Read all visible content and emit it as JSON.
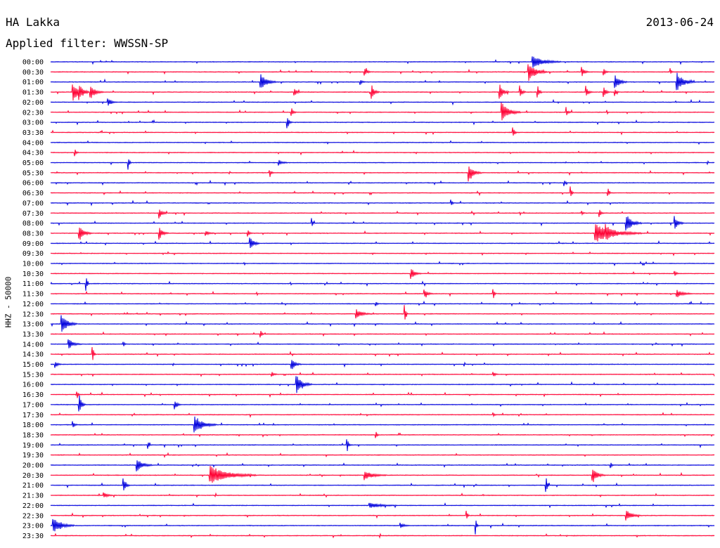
{
  "header": {
    "station": "HA Lakka",
    "date": "2013-06-24",
    "filter_label": "Applied filter: WWSSN-SP"
  },
  "axis": {
    "ylabel": "HHZ - 50000"
  },
  "colors": {
    "blue": "#0000dd",
    "red": "#ff0033",
    "text": "#000000"
  },
  "chart_data": {
    "type": "line",
    "title": "HA Lakka",
    "subtitle": "Applied filter: WWSSN-SP",
    "date": "2013-06-24",
    "ylabel": "HHZ - 50000",
    "rows": [
      "00:00",
      "00:30",
      "01:00",
      "01:30",
      "02:00",
      "02:30",
      "03:00",
      "03:30",
      "04:00",
      "04:30",
      "05:00",
      "05:30",
      "06:00",
      "06:30",
      "07:00",
      "07:30",
      "08:00",
      "08:30",
      "09:00",
      "09:30",
      "10:00",
      "10:30",
      "11:00",
      "11:30",
      "12:00",
      "12:30",
      "13:00",
      "13:30",
      "14:00",
      "14:30",
      "15:00",
      "15:30",
      "16:00",
      "16:30",
      "17:00",
      "17:30",
      "18:00",
      "18:30",
      "19:00",
      "19:30",
      "20:00",
      "20:30",
      "21:00",
      "21:30",
      "22:00",
      "22:30",
      "23:00",
      "23:30"
    ],
    "row_colors": [
      "blue",
      "red"
    ],
    "minutes_per_row": 30,
    "events": [
      [
        0,
        21.8,
        18,
        0.6
      ],
      [
        1,
        14.2,
        4,
        0.4
      ],
      [
        1,
        21.6,
        12,
        1.0
      ],
      [
        1,
        24.0,
        5,
        0.5
      ],
      [
        1,
        25.0,
        3,
        0.4
      ],
      [
        1,
        28.0,
        2,
        0.4
      ],
      [
        2,
        9.5,
        10,
        0.8
      ],
      [
        2,
        14.0,
        3,
        0.3
      ],
      [
        2,
        25.5,
        8,
        0.8
      ],
      [
        2,
        28.3,
        12,
        1.0
      ],
      [
        3,
        1.0,
        10,
        1.0
      ],
      [
        3,
        1.3,
        6,
        0.7
      ],
      [
        3,
        1.8,
        8,
        0.8
      ],
      [
        3,
        11.0,
        4,
        0.5
      ],
      [
        3,
        14.5,
        5,
        0.8
      ],
      [
        3,
        20.3,
        6,
        0.8
      ],
      [
        3,
        21.2,
        4,
        0.7
      ],
      [
        3,
        22.0,
        3,
        0.8
      ],
      [
        3,
        24.2,
        4,
        0.6
      ],
      [
        3,
        25.0,
        4,
        0.6
      ],
      [
        3,
        25.5,
        3,
        0.4
      ],
      [
        4,
        2.6,
        5,
        0.5
      ],
      [
        5,
        10.9,
        3,
        0.4
      ],
      [
        5,
        20.4,
        12,
        1.0
      ],
      [
        5,
        23.3,
        3,
        0.4
      ],
      [
        6,
        10.7,
        3,
        0.7
      ],
      [
        7,
        20.9,
        3,
        0.5
      ],
      [
        9,
        1.1,
        2,
        0.4
      ],
      [
        10,
        3.5,
        2,
        0.9
      ],
      [
        10,
        10.3,
        6,
        0.3
      ],
      [
        11,
        9.9,
        3,
        0.3
      ],
      [
        11,
        18.9,
        8,
        0.9
      ],
      [
        12,
        23.2,
        2,
        0.5
      ],
      [
        13,
        23.5,
        2,
        0.7
      ],
      [
        13,
        25.2,
        2,
        0.4
      ],
      [
        14,
        18.1,
        2,
        0.4
      ],
      [
        15,
        4.9,
        5,
        0.6
      ],
      [
        15,
        24.0,
        2,
        0.3
      ],
      [
        15,
        24.8,
        3,
        0.4
      ],
      [
        16,
        11.8,
        2,
        0.5
      ],
      [
        16,
        26.0,
        10,
        1.0
      ],
      [
        16,
        28.2,
        6,
        0.7
      ],
      [
        17,
        1.3,
        8,
        0.8
      ],
      [
        17,
        4.9,
        6,
        0.7
      ],
      [
        17,
        7.0,
        5,
        0.3
      ],
      [
        17,
        8.9,
        3,
        0.4
      ],
      [
        17,
        24.6,
        30,
        1.0
      ],
      [
        17,
        25.1,
        8,
        0.5
      ],
      [
        18,
        9.0,
        6,
        0.9
      ],
      [
        21,
        16.3,
        6,
        0.6
      ],
      [
        21,
        28.2,
        3,
        0.3
      ],
      [
        22,
        1.6,
        2,
        1.0
      ],
      [
        23,
        16.9,
        6,
        0.4
      ],
      [
        23,
        20.0,
        2,
        0.7
      ],
      [
        23,
        28.3,
        10,
        0.4
      ],
      [
        24,
        14.7,
        2,
        0.3
      ],
      [
        25,
        13.8,
        10,
        0.5
      ],
      [
        25,
        16.0,
        2,
        1.0
      ],
      [
        26,
        0.5,
        10,
        1.0
      ],
      [
        27,
        9.5,
        2,
        0.5
      ],
      [
        28,
        0.8,
        8,
        0.6
      ],
      [
        28,
        3.3,
        2,
        0.3
      ],
      [
        29,
        1.9,
        2,
        0.9
      ],
      [
        30,
        0.2,
        4,
        0.4
      ],
      [
        30,
        10.9,
        6,
        0.6
      ],
      [
        31,
        10.0,
        3,
        0.3
      ],
      [
        31,
        20.0,
        3,
        0.3
      ],
      [
        32,
        11.1,
        10,
        1.0
      ],
      [
        33,
        1.2,
        2,
        0.4
      ],
      [
        34,
        1.3,
        4,
        1.0
      ],
      [
        34,
        5.6,
        4,
        0.5
      ],
      [
        35,
        20.0,
        2,
        0.3
      ],
      [
        36,
        1.0,
        3,
        0.4
      ],
      [
        36,
        6.5,
        14,
        1.0
      ],
      [
        37,
        14.7,
        2,
        0.4
      ],
      [
        38,
        4.4,
        2,
        0.4
      ],
      [
        38,
        13.4,
        2,
        0.9
      ],
      [
        40,
        3.9,
        10,
        0.7
      ],
      [
        40,
        25.3,
        3,
        0.3
      ],
      [
        41,
        7.2,
        30,
        1.0
      ],
      [
        41,
        14.2,
        14,
        0.5
      ],
      [
        41,
        24.5,
        8,
        0.8
      ],
      [
        42,
        3.3,
        4,
        0.7
      ],
      [
        42,
        22.4,
        2,
        1.0
      ],
      [
        43,
        2.4,
        6,
        0.3
      ],
      [
        44,
        14.4,
        18,
        0.3
      ],
      [
        45,
        18.8,
        2,
        0.5
      ],
      [
        45,
        26.0,
        10,
        0.6
      ],
      [
        46,
        0.1,
        14,
        0.8
      ],
      [
        46,
        15.8,
        6,
        0.3
      ],
      [
        46,
        19.2,
        2,
        0.9
      ]
    ]
  }
}
